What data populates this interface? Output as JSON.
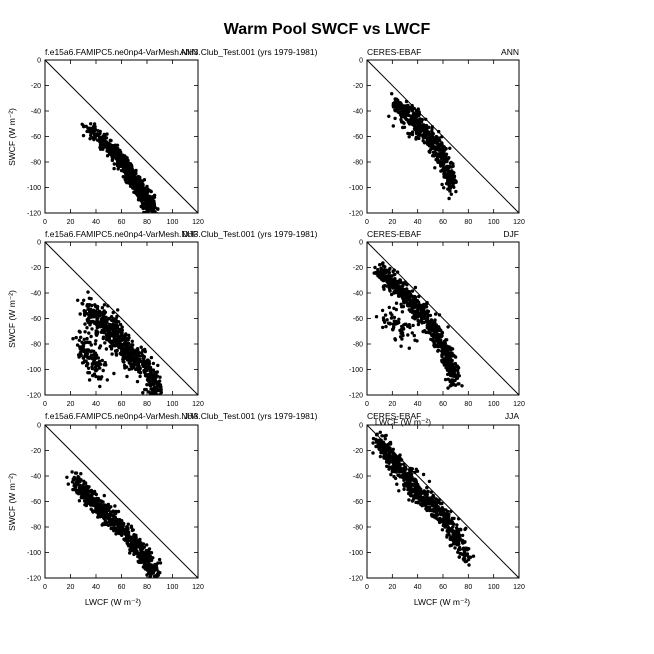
{
  "figure": {
    "title": "Warm Pool SWCF vs LWCF"
  },
  "chart_data": [
    {
      "type": "scatter",
      "left_label": "f.e15a6.FAMIPC5.ne0np4-VarMesh.NH3.Club_Test.001 (yrs 1979-1981)",
      "right_label": "ANN",
      "xlabel": "",
      "ylabel": "SWCF (W m⁻²)",
      "xlim": [
        0,
        120
      ],
      "ylim": [
        -120,
        0
      ],
      "xticks": [
        "0",
        "20",
        "40",
        "60",
        "80",
        "100",
        "120"
      ],
      "yticks": [
        "0",
        "-20",
        "-40",
        "-60",
        "-80",
        "-100",
        "-120"
      ],
      "reference_line": "1:1 diagonal (SWCF = -LWCF)",
      "clusters": [
        {
          "x": [
            33,
            45,
            52,
            58,
            62,
            66,
            70,
            74,
            78,
            81,
            84
          ],
          "y": [
            -53,
            -62,
            -70,
            -76,
            -82,
            -88,
            -94,
            -100,
            -106,
            -112,
            -118
          ],
          "spread_x": 5,
          "spread_y": 5,
          "n": 700
        }
      ]
    },
    {
      "type": "scatter",
      "left_label": "CERES-EBAF",
      "right_label": "ANN",
      "xlabel": "",
      "ylabel": "",
      "xlim": [
        0,
        120
      ],
      "ylim": [
        -120,
        0
      ],
      "xticks": [
        "0",
        "20",
        "40",
        "60",
        "80",
        "100",
        "120"
      ],
      "yticks": [
        "0",
        "-20",
        "-40",
        "-60",
        "-80",
        "-100",
        "-120"
      ],
      "reference_line": "1:1 diagonal (SWCF = -LWCF)",
      "clusters": [
        {
          "x": [
            22,
            28,
            34,
            40,
            46,
            52,
            56,
            60,
            64,
            68
          ],
          "y": [
            -34,
            -40,
            -46,
            -52,
            -58,
            -64,
            -70,
            -78,
            -88,
            -100
          ],
          "spread_x": 5,
          "spread_y": 9,
          "n": 520
        }
      ]
    },
    {
      "type": "scatter",
      "left_label": "f.e15a6.FAMIPC5.ne0np4-VarMesh.NH3.Club_Test.001 (yrs 1979-1981)",
      "right_label": "DJF",
      "xlabel": "",
      "ylabel": "SWCF (W m⁻²)",
      "xlim": [
        0,
        120
      ],
      "ylim": [
        -120,
        0
      ],
      "xticks": [
        "0",
        "20",
        "40",
        "60",
        "80",
        "100",
        "120"
      ],
      "yticks": [
        "0",
        "-20",
        "-40",
        "-60",
        "-80",
        "-100",
        "-120"
      ],
      "reference_line": "1:1 diagonal (SWCF = -LWCF)",
      "clusters": [
        {
          "x": [
            33,
            40,
            48,
            55,
            60,
            66,
            72,
            78,
            84,
            88
          ],
          "y": [
            -55,
            -60,
            -66,
            -72,
            -80,
            -86,
            -92,
            -100,
            -108,
            -116
          ],
          "spread_x": 6,
          "spread_y": 12,
          "n": 650
        },
        {
          "x": [
            25,
            35,
            45
          ],
          "y": [
            -80,
            -90,
            -100
          ],
          "spread_x": 6,
          "spread_y": 14,
          "n": 110
        }
      ]
    },
    {
      "type": "scatter",
      "left_label": "CERES-EBAF",
      "right_label": "DJF",
      "xlabel": "LWCF (W m⁻²)",
      "ylabel": "",
      "xlim": [
        0,
        120
      ],
      "ylim": [
        -120,
        0
      ],
      "xticks": [
        "0",
        "20",
        "40",
        "60",
        "80",
        "100",
        "120"
      ],
      "yticks": [
        "0",
        "-20",
        "-40",
        "-60",
        "-80",
        "-100",
        "-120"
      ],
      "reference_line": "1:1 diagonal (SWCF = -LWCF)",
      "clusters": [
        {
          "x": [
            10,
            18,
            26,
            34,
            42,
            50,
            56,
            62,
            66,
            70
          ],
          "y": [
            -23,
            -30,
            -38,
            -46,
            -55,
            -64,
            -74,
            -86,
            -98,
            -110
          ],
          "spread_x": 5,
          "spread_y": 8,
          "n": 650
        },
        {
          "x": [
            15,
            25,
            35
          ],
          "y": [
            -60,
            -66,
            -70
          ],
          "spread_x": 6,
          "spread_y": 10,
          "n": 60
        }
      ]
    },
    {
      "type": "scatter",
      "left_label": "f.e15a6.FAMIPC5.ne0np4-VarMesh.NH3.Club_Test.001 (yrs 1979-1981)",
      "right_label": "JJA",
      "xlabel": "LWCF (W m⁻²)",
      "ylabel": "SWCF (W m⁻²)",
      "xlim": [
        0,
        120
      ],
      "ylim": [
        -120,
        0
      ],
      "xticks": [
        "0",
        "20",
        "40",
        "60",
        "80",
        "100",
        "120"
      ],
      "yticks": [
        "0",
        "-20",
        "-40",
        "-60",
        "-80",
        "-100",
        "-120"
      ],
      "reference_line": "1:1 diagonal (SWCF = -LWCF)",
      "clusters": [
        {
          "x": [
            22,
            30,
            38,
            46,
            54,
            62,
            70,
            76,
            82,
            87
          ],
          "y": [
            -43,
            -52,
            -60,
            -68,
            -76,
            -84,
            -92,
            -100,
            -110,
            -118
          ],
          "spread_x": 5,
          "spread_y": 7,
          "n": 650
        }
      ]
    },
    {
      "type": "scatter",
      "left_label": "CERES-EBAF",
      "right_label": "JJA",
      "xlabel": "LWCF (W m⁻²)",
      "ylabel": "",
      "xlim": [
        0,
        120
      ],
      "ylim": [
        -120,
        0
      ],
      "xticks": [
        "0",
        "20",
        "40",
        "60",
        "80",
        "100",
        "120"
      ],
      "yticks": [
        "0",
        "-20",
        "-40",
        "-60",
        "-80",
        "-100",
        "-120"
      ],
      "reference_line": "1:1 diagonal (SWCF = -LWCF)",
      "clusters": [
        {
          "x": [
            8,
            16,
            24,
            32,
            40,
            48,
            56,
            64,
            72,
            80
          ],
          "y": [
            -12,
            -22,
            -32,
            -42,
            -52,
            -60,
            -68,
            -78,
            -90,
            -104
          ],
          "spread_x": 5,
          "spread_y": 9,
          "n": 650
        }
      ]
    }
  ]
}
